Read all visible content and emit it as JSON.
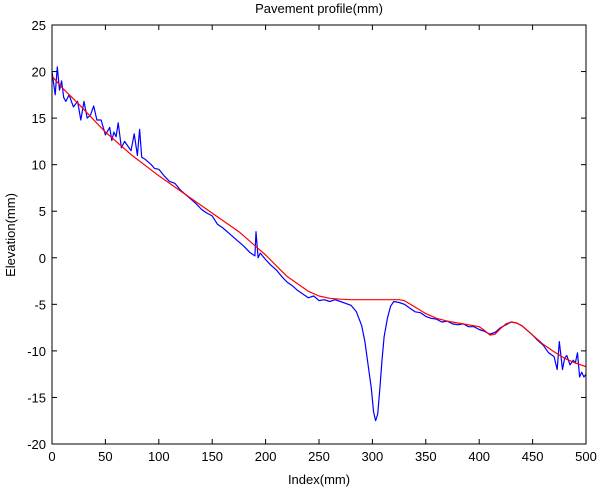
{
  "chart_data": {
    "type": "line",
    "title": "Pavement profile(mm)",
    "xlabel": "Index(mm)",
    "ylabel": "Elevation(mm)",
    "xlim": [
      0,
      500
    ],
    "ylim": [
      -20,
      25
    ],
    "xticks": [
      0,
      50,
      100,
      150,
      200,
      250,
      300,
      350,
      400,
      450,
      500
    ],
    "yticks": [
      -20,
      -15,
      -10,
      -5,
      0,
      5,
      10,
      15,
      20,
      25
    ],
    "grid": false,
    "legend": "none",
    "series": [
      {
        "color": "#0000ff",
        "x": [
          0,
          3,
          5,
          7,
          9,
          11,
          13,
          16,
          20,
          24,
          27,
          30,
          33,
          36,
          39,
          42,
          46,
          50,
          54,
          56,
          58,
          60,
          62,
          65,
          68,
          71,
          74,
          77,
          80,
          82,
          84,
          87,
          90,
          93,
          96,
          100,
          105,
          110,
          115,
          120,
          125,
          130,
          135,
          140,
          145,
          150,
          155,
          160,
          165,
          170,
          175,
          180,
          185,
          190,
          191,
          193,
          195,
          200,
          205,
          210,
          215,
          220,
          225,
          230,
          235,
          240,
          245,
          250,
          255,
          260,
          265,
          270,
          275,
          280,
          285,
          290,
          293,
          296,
          299,
          301,
          303,
          305,
          307,
          309,
          311,
          314,
          317,
          320,
          325,
          330,
          335,
          340,
          345,
          350,
          355,
          360,
          365,
          370,
          375,
          380,
          385,
          390,
          395,
          400,
          405,
          410,
          415,
          420,
          425,
          430,
          435,
          440,
          445,
          450,
          455,
          460,
          465,
          470,
          473,
          475,
          478,
          480,
          482,
          485,
          488,
          490,
          492,
          494,
          496,
          498,
          500
        ],
        "y": [
          20.0,
          17.5,
          20.5,
          18.0,
          19.0,
          17.2,
          16.8,
          17.5,
          16.2,
          16.8,
          14.8,
          16.8,
          15.0,
          15.3,
          16.3,
          14.8,
          14.8,
          13.2,
          14.0,
          12.6,
          13.5,
          13.0,
          14.5,
          11.8,
          12.5,
          12.0,
          11.5,
          13.3,
          11.0,
          13.8,
          10.8,
          10.6,
          10.3,
          10.0,
          9.6,
          9.5,
          8.8,
          8.2,
          8.0,
          7.3,
          6.8,
          6.3,
          5.8,
          5.2,
          4.8,
          4.5,
          3.6,
          3.2,
          2.7,
          2.2,
          1.7,
          1.2,
          0.6,
          0.2,
          2.8,
          0.0,
          0.5,
          -0.2,
          -0.8,
          -1.3,
          -2.0,
          -2.6,
          -3.0,
          -3.5,
          -3.9,
          -4.3,
          -4.1,
          -4.6,
          -4.5,
          -4.7,
          -4.5,
          -4.7,
          -4.9,
          -5.1,
          -5.8,
          -7.3,
          -9.0,
          -11.5,
          -14.0,
          -16.5,
          -17.5,
          -16.8,
          -14.0,
          -11.0,
          -8.5,
          -6.5,
          -5.2,
          -4.7,
          -4.8,
          -5.0,
          -5.4,
          -5.8,
          -5.9,
          -6.3,
          -6.5,
          -6.6,
          -6.9,
          -6.8,
          -7.1,
          -7.2,
          -7.1,
          -7.4,
          -7.4,
          -7.7,
          -7.9,
          -8.2,
          -8.0,
          -7.5,
          -7.2,
          -6.9,
          -7.0,
          -7.3,
          -7.8,
          -8.3,
          -8.9,
          -9.4,
          -10.2,
          -10.6,
          -12.0,
          -9.0,
          -12.0,
          -10.8,
          -10.5,
          -11.5,
          -11.0,
          -11.3,
          -10.2,
          -12.8,
          -12.3,
          -12.8,
          -12.5
        ]
      },
      {
        "color": "#ff0000",
        "x": [
          0,
          10,
          25,
          50,
          75,
          100,
          125,
          150,
          175,
          200,
          220,
          240,
          250,
          260,
          270,
          280,
          290,
          300,
          310,
          320,
          325,
          330,
          340,
          350,
          360,
          370,
          380,
          390,
          400,
          405,
          410,
          415,
          420,
          425,
          430,
          435,
          440,
          445,
          450,
          460,
          470,
          480,
          490,
          500
        ],
        "y": [
          19.5,
          18.2,
          16.5,
          13.5,
          11.0,
          8.8,
          6.8,
          4.8,
          2.8,
          0.3,
          -2.0,
          -3.6,
          -4.1,
          -4.35,
          -4.45,
          -4.5,
          -4.5,
          -4.5,
          -4.5,
          -4.5,
          -4.5,
          -4.6,
          -5.3,
          -6.0,
          -6.5,
          -6.8,
          -7.0,
          -7.2,
          -7.4,
          -7.8,
          -8.3,
          -8.2,
          -7.6,
          -7.1,
          -6.9,
          -7.0,
          -7.3,
          -7.8,
          -8.3,
          -9.3,
          -10.1,
          -10.8,
          -11.3,
          -11.7
        ]
      }
    ]
  }
}
